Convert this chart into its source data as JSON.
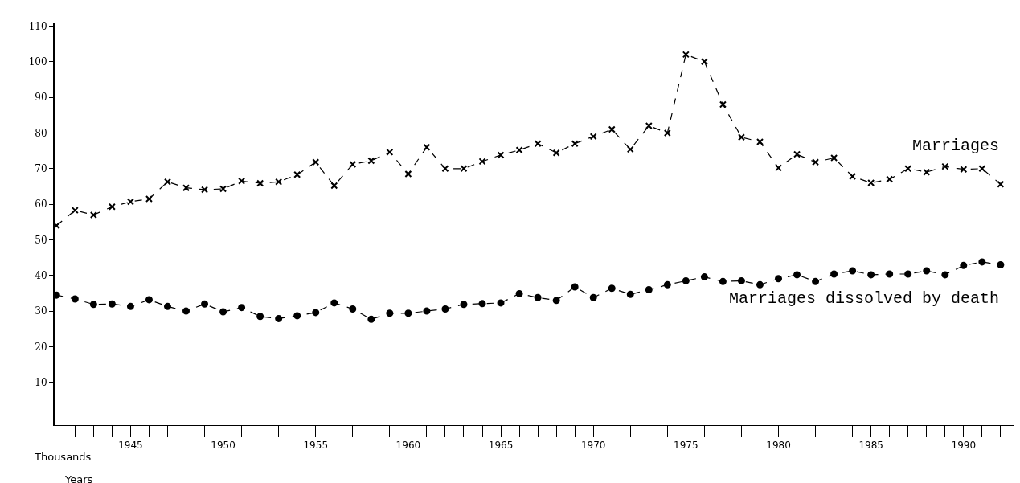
{
  "chart_data": {
    "type": "line",
    "x": [
      1941,
      1942,
      1943,
      1944,
      1945,
      1946,
      1947,
      1948,
      1949,
      1950,
      1951,
      1952,
      1953,
      1954,
      1955,
      1956,
      1957,
      1958,
      1959,
      1960,
      1961,
      1962,
      1963,
      1964,
      1965,
      1966,
      1967,
      1968,
      1969,
      1970,
      1971,
      1972,
      1973,
      1974,
      1975,
      1976,
      1977,
      1978,
      1979,
      1980,
      1981,
      1982,
      1983,
      1984,
      1985,
      1986,
      1987,
      1988,
      1989,
      1990,
      1991,
      1992
    ],
    "series": [
      {
        "name": "Marriages",
        "color": "#000000",
        "marker": "cross",
        "values": [
          54,
          58.3,
          57,
          59.3,
          60.7,
          61.5,
          66.3,
          64.6,
          64.1,
          64.3,
          66.5,
          65.9,
          66.3,
          68.3,
          71.8,
          65.2,
          71.2,
          72.2,
          74.6,
          68.5,
          76,
          70,
          70,
          72,
          73.8,
          75.2,
          77,
          74.4,
          77,
          79,
          81,
          75.4,
          82,
          80,
          102,
          100,
          88,
          78.8,
          77.5,
          70.2,
          74,
          71.8,
          73,
          67.8,
          66,
          67,
          70,
          69,
          70.6,
          69.8,
          70,
          65.6
        ]
      },
      {
        "name": "Marriages dissolved by death",
        "color": "#000000",
        "marker": "circle",
        "values": [
          34.5,
          33.4,
          31.9,
          32,
          31.3,
          33.2,
          31.3,
          30,
          32,
          29.8,
          31,
          28.5,
          27.9,
          28.7,
          29.6,
          32.3,
          30.6,
          27.7,
          29.4,
          29.4,
          30,
          30.6,
          31.9,
          32.1,
          32.3,
          34.9,
          33.8,
          33,
          36.8,
          33.8,
          36.4,
          34.7,
          36,
          37.4,
          38.5,
          39.6,
          38.3,
          38.5,
          37.4,
          39.1,
          40.2,
          38.3,
          40.4,
          41.3,
          40.2,
          40.4,
          40.4,
          41.3,
          40.2,
          42.8,
          43.8,
          43
        ]
      }
    ],
    "xlabel": "Years",
    "ylabel": "Thousands",
    "xlim": [
      1940.9,
      1992.7
    ],
    "ylim": [
      -2,
      111
    ],
    "xticks": [
      {
        "value": 1942,
        "label": null
      },
      {
        "value": 1943,
        "label": null
      },
      {
        "value": 1944,
        "label": null
      },
      1945,
      {
        "value": 1946,
        "label": null
      },
      {
        "value": 1947,
        "label": null
      },
      {
        "value": 1948,
        "label": null
      },
      {
        "value": 1949,
        "label": null
      },
      1950,
      {
        "value": 1951,
        "label": null
      },
      {
        "value": 1952,
        "label": null
      },
      {
        "value": 1953,
        "label": null
      },
      {
        "value": 1954,
        "label": null
      },
      1955,
      {
        "value": 1956,
        "label": null
      },
      {
        "value": 1957,
        "label": null
      },
      {
        "value": 1958,
        "label": null
      },
      {
        "value": 1959,
        "label": null
      },
      1960,
      {
        "value": 1961,
        "label": null
      },
      {
        "value": 1962,
        "label": null
      },
      {
        "value": 1963,
        "label": null
      },
      {
        "value": 1964,
        "label": null
      },
      1965,
      {
        "value": 1966,
        "label": null
      },
      {
        "value": 1967,
        "label": null
      },
      {
        "value": 1968,
        "label": null
      },
      {
        "value": 1969,
        "label": null
      },
      1970,
      {
        "value": 1971,
        "label": null
      },
      {
        "value": 1972,
        "label": null
      },
      {
        "value": 1973,
        "label": null
      },
      {
        "value": 1974,
        "label": null
      },
      1975,
      {
        "value": 1976,
        "label": null
      },
      {
        "value": 1977,
        "label": null
      },
      {
        "value": 1978,
        "label": null
      },
      {
        "value": 1979,
        "label": null
      },
      1980,
      {
        "value": 1981,
        "label": null
      },
      {
        "value": 1982,
        "label": null
      },
      {
        "value": 1983,
        "label": null
      },
      {
        "value": 1984,
        "label": null
      },
      1985,
      {
        "value": 1986,
        "label": null
      },
      {
        "value": 1987,
        "label": null
      },
      {
        "value": 1988,
        "label": null
      },
      {
        "value": 1989,
        "label": null
      },
      1990,
      {
        "value": 1991,
        "label": null
      },
      {
        "value": 1992,
        "label": null
      }
    ],
    "yticks": [
      10,
      20,
      30,
      40,
      50,
      60,
      70,
      80,
      90,
      100,
      110
    ],
    "line_style": "dashed"
  }
}
